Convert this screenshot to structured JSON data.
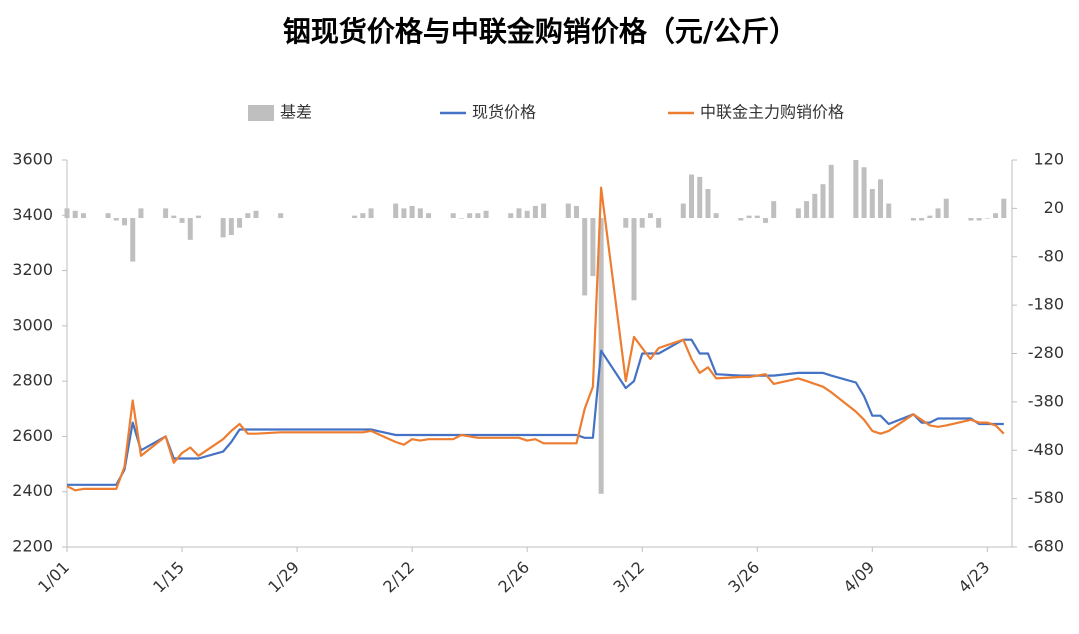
{
  "chart_data": {
    "type": "bar-line",
    "title": "铟现货价格与中联金购销价格（元/公斤）",
    "x": [
      0,
      1,
      2,
      5,
      6,
      7,
      8,
      9,
      12,
      13,
      14,
      15,
      16,
      19,
      20,
      21,
      22,
      23,
      26,
      35,
      36,
      37,
      40,
      41,
      42,
      43,
      44,
      47,
      48,
      49,
      50,
      51,
      54,
      55,
      56,
      57,
      58,
      61,
      62,
      63,
      64,
      65,
      68,
      69,
      70,
      71,
      72,
      75,
      76,
      77,
      78,
      79,
      82,
      83,
      84,
      85,
      86,
      89,
      90,
      91,
      92,
      93,
      96,
      97,
      98,
      99,
      100,
      103,
      104,
      105,
      106,
      107,
      110,
      111,
      112,
      113,
      114
    ],
    "xlim": [
      0,
      115
    ],
    "xticks": [
      {
        "value": 0,
        "label": "1/01"
      },
      {
        "value": 14,
        "label": "1/15"
      },
      {
        "value": 28,
        "label": "1/29"
      },
      {
        "value": 42,
        "label": "2/12"
      },
      {
        "value": 56,
        "label": "2/26"
      },
      {
        "value": 70,
        "label": "3/12"
      },
      {
        "value": 84,
        "label": "3/26"
      },
      {
        "value": 98,
        "label": "4/09"
      },
      {
        "value": 112,
        "label": "4/23"
      }
    ],
    "ylim": [
      2200,
      3600
    ],
    "yticks": [
      2200,
      2400,
      2600,
      2800,
      3000,
      3200,
      3400,
      3600
    ],
    "y2lim": [
      -680,
      120
    ],
    "y2ticks": [
      -680,
      -580,
      -480,
      -380,
      -280,
      -180,
      -80,
      20,
      120
    ],
    "series": [
      {
        "name": "基差",
        "type": "bar",
        "axis": "y2",
        "color": "#bfbfbf",
        "values": [
          20,
          15,
          10,
          10,
          -5,
          -15,
          -90,
          20,
          20,
          5,
          -10,
          -45,
          5,
          -40,
          -35,
          -20,
          10,
          15,
          10,
          5,
          10,
          20,
          30,
          20,
          25,
          20,
          10,
          10,
          0,
          10,
          10,
          15,
          10,
          20,
          15,
          25,
          30,
          30,
          25,
          -160,
          -120,
          -570,
          -20,
          -170,
          -20,
          10,
          -20,
          30,
          90,
          85,
          60,
          10,
          -5,
          5,
          5,
          -10,
          35,
          20,
          35,
          50,
          70,
          110,
          120,
          105,
          60,
          80,
          30,
          -5,
          -5,
          5,
          20,
          40,
          -5,
          -5,
          0,
          10,
          40
        ]
      },
      {
        "name": "现货价格",
        "type": "line",
        "color": "#4472c4",
        "values": [
          2425,
          2425,
          2425,
          2425,
          2425,
          2480,
          2650,
          2550,
          2600,
          2520,
          2520,
          2520,
          2520,
          2545,
          2580,
          2625,
          2625,
          2625,
          2625,
          2625,
          2625,
          2625,
          2605,
          2605,
          2605,
          2605,
          2605,
          2605,
          2605,
          2605,
          2605,
          2605,
          2605,
          2605,
          2605,
          2605,
          2605,
          2605,
          2605,
          2595,
          2595,
          2910,
          2775,
          2800,
          2900,
          2900,
          2900,
          2950,
          2950,
          2900,
          2900,
          2825,
          2820,
          2820,
          2820,
          2820,
          2820,
          2830,
          2830,
          2830,
          2830,
          2820,
          2795,
          2745,
          2675,
          2675,
          2645,
          2680,
          2650,
          2650,
          2665,
          2665,
          2665,
          2645,
          2645,
          2645,
          2645
        ]
      },
      {
        "name": "中联金主力购销价格",
        "type": "line",
        "color": "#ed7d31",
        "values": [
          2420,
          2405,
          2410,
          2410,
          2410,
          2490,
          2730,
          2530,
          2600,
          2505,
          2540,
          2560,
          2530,
          2590,
          2620,
          2645,
          2610,
          2610,
          2615,
          2615,
          2615,
          2620,
          2580,
          2570,
          2590,
          2585,
          2590,
          2590,
          2605,
          2600,
          2595,
          2595,
          2595,
          2595,
          2585,
          2590,
          2575,
          2575,
          2575,
          2700,
          2780,
          3500,
          2800,
          2960,
          2920,
          2880,
          2920,
          2950,
          2880,
          2830,
          2850,
          2810,
          2815,
          2815,
          2820,
          2825,
          2790,
          2810,
          2800,
          2790,
          2780,
          2760,
          2690,
          2660,
          2620,
          2610,
          2620,
          2680,
          2660,
          2640,
          2635,
          2640,
          2660,
          2650,
          2650,
          2640,
          2610
        ]
      }
    ]
  }
}
